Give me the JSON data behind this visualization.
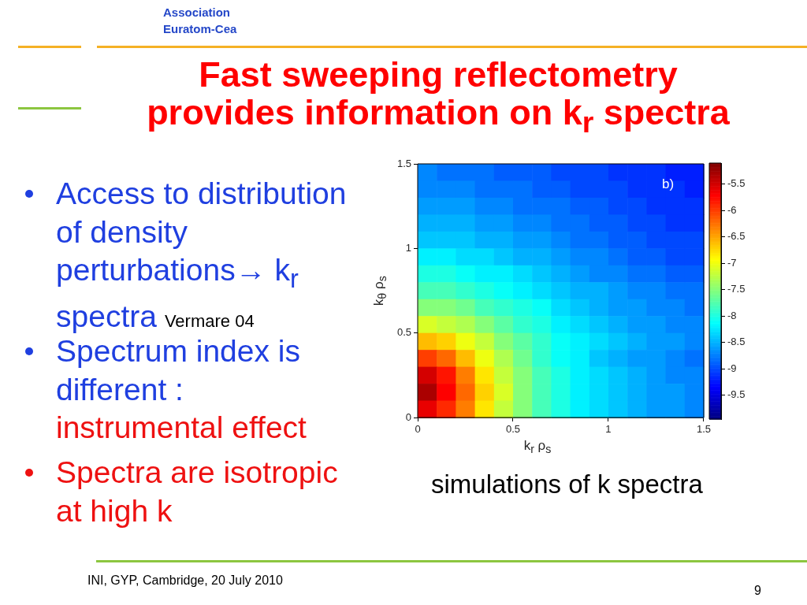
{
  "chart_data": {
    "type": "heatmap",
    "title": "Fast sweeping reflectometry provides information on k$_{r}$ spectra",
    "xlabel": "k$_{r}$ ρ$_{s}$",
    "ylabel": "k$_{θ}$ ρ$_{s}$",
    "annotations": [
      "Association Euratom-Cea",
      "Access to distribution of density perturbations→ k$_{r}$",
      "spectra",
      "Vermare 04",
      "Spectrum index is different :",
      "instrumental effect",
      "Spectra are isotropic at high k",
      "b)",
      "simulations of k spectra",
      "INI, GYP, Cambridge, 20 July 2010",
      "9"
    ],
    "xlim": [
      0,
      1.5
    ],
    "ylim": [
      0,
      1.5
    ],
    "xticks": [
      0,
      0.5,
      1,
      1.5
    ],
    "yticks": [
      0,
      0.5,
      1,
      1.5
    ],
    "clim": [
      -9.95,
      -5.1
    ],
    "cticks": [
      -9.5,
      -9,
      -8.5,
      -8,
      -7.5,
      -7,
      -6.5,
      -6,
      -5.5
    ],
    "cells": [
      [
        -8.7,
        -8.8,
        -8.8,
        -8.8,
        -8.9,
        -8.9,
        -8.9,
        -9.0,
        -9.0,
        -9.0,
        -9.1,
        -9.1,
        -9.1,
        -9.2,
        -9.2
      ],
      [
        -8.7,
        -8.7,
        -8.7,
        -8.8,
        -8.8,
        -8.8,
        -8.9,
        -8.9,
        -9.0,
        -9.0,
        -9.0,
        -9.1,
        -9.1,
        -9.1,
        -9.2
      ],
      [
        -8.6,
        -8.6,
        -8.6,
        -8.7,
        -8.7,
        -8.8,
        -8.8,
        -8.8,
        -8.9,
        -8.9,
        -9.0,
        -9.0,
        -9.1,
        -9.1,
        -9.1
      ],
      [
        -8.5,
        -8.5,
        -8.5,
        -8.6,
        -8.6,
        -8.7,
        -8.7,
        -8.8,
        -8.8,
        -8.9,
        -8.9,
        -9.0,
        -9.0,
        -9.1,
        -9.1
      ],
      [
        -8.4,
        -8.4,
        -8.4,
        -8.5,
        -8.5,
        -8.6,
        -8.6,
        -8.7,
        -8.8,
        -8.8,
        -8.9,
        -8.9,
        -9.0,
        -9.0,
        -9.0
      ],
      [
        -8.2,
        -8.2,
        -8.3,
        -8.3,
        -8.4,
        -8.5,
        -8.5,
        -8.6,
        -8.7,
        -8.7,
        -8.8,
        -8.9,
        -8.9,
        -9.0,
        -9.0
      ],
      [
        -8.0,
        -8.0,
        -8.1,
        -8.2,
        -8.2,
        -8.3,
        -8.4,
        -8.5,
        -8.6,
        -8.7,
        -8.7,
        -8.8,
        -8.8,
        -8.9,
        -8.9
      ],
      [
        -7.8,
        -7.8,
        -7.9,
        -8.0,
        -8.1,
        -8.2,
        -8.3,
        -8.4,
        -8.5,
        -8.5,
        -8.6,
        -8.7,
        -8.7,
        -8.8,
        -8.8
      ],
      [
        -7.5,
        -7.5,
        -7.6,
        -7.8,
        -7.9,
        -8.0,
        -8.1,
        -8.3,
        -8.4,
        -8.5,
        -8.6,
        -8.6,
        -8.7,
        -8.7,
        -8.8
      ],
      [
        -7.1,
        -7.2,
        -7.3,
        -7.5,
        -7.7,
        -7.9,
        -8.0,
        -8.2,
        -8.3,
        -8.4,
        -8.5,
        -8.6,
        -8.6,
        -8.7,
        -8.7
      ],
      [
        -6.6,
        -6.7,
        -7.0,
        -7.2,
        -7.5,
        -7.7,
        -7.9,
        -8.1,
        -8.2,
        -8.3,
        -8.4,
        -8.5,
        -8.6,
        -8.6,
        -8.7
      ],
      [
        -6.0,
        -6.2,
        -6.6,
        -7.0,
        -7.3,
        -7.6,
        -7.9,
        -8.1,
        -8.2,
        -8.4,
        -8.5,
        -8.6,
        -8.6,
        -8.7,
        -8.8
      ],
      [
        -5.5,
        -5.8,
        -6.3,
        -6.8,
        -7.2,
        -7.5,
        -7.8,
        -8.0,
        -8.2,
        -8.3,
        -8.4,
        -8.5,
        -8.6,
        -8.7,
        -8.7
      ],
      [
        -5.3,
        -5.7,
        -6.2,
        -6.7,
        -7.1,
        -7.5,
        -7.8,
        -8.0,
        -8.2,
        -8.3,
        -8.4,
        -8.5,
        -8.6,
        -8.6,
        -8.7
      ],
      [
        -5.6,
        -5.9,
        -6.3,
        -6.8,
        -7.2,
        -7.5,
        -7.8,
        -8.0,
        -8.2,
        -8.3,
        -8.4,
        -8.5,
        -8.6,
        -8.6,
        -8.7
      ]
    ]
  }
}
